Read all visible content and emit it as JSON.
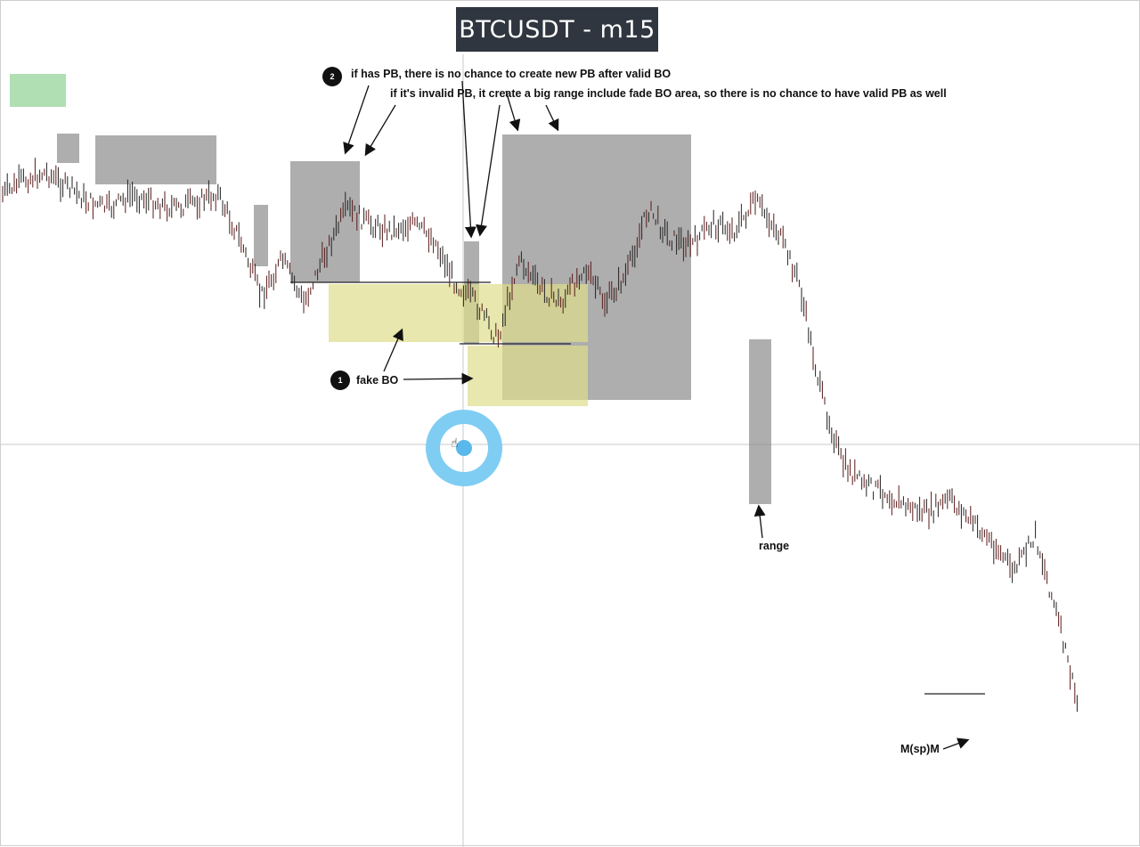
{
  "title": "BTCUSDT - m15",
  "colors": {
    "range_box": "#8f8f8f",
    "zone_box": "#dedd8a",
    "green_box": "#9bd7a0",
    "candle": "#222222",
    "crosshair": "#c8c8c8",
    "cursor_ring": "#7fcdf2"
  },
  "annotations": {
    "note1_number": "1",
    "note1_label": "fake BO",
    "note2_number": "2",
    "note2_line1": "if has PB, there is no chance to create new PB after valid BO",
    "note2_line2": "if it's invalid PB, it create a big range include fade BO area, so there is no chance to have valid PB as well",
    "range_label": "range",
    "msm_label": "M(sp)M"
  },
  "cursor": {
    "icon": "hand-pointer-icon"
  },
  "chart_data": {
    "type": "line",
    "title": "BTCUSDT - m15",
    "xlabel": "",
    "ylabel": "",
    "grid": false,
    "legend": "none",
    "ylim": [
      0,
      100
    ],
    "series": [
      {
        "name": "",
        "x": [
          0,
          2,
          4,
          6,
          8,
          10,
          12,
          14,
          16,
          18,
          20,
          22,
          24,
          26,
          28,
          30,
          32,
          34,
          36,
          38,
          40,
          42,
          44,
          46,
          48,
          50,
          52,
          54,
          56,
          58,
          60,
          62,
          64,
          66,
          68,
          70,
          72,
          74,
          76,
          78,
          80,
          82,
          84,
          86,
          88,
          90,
          92,
          94,
          96,
          98,
          100
        ],
        "values": [
          85,
          87,
          88,
          86,
          84,
          83,
          85,
          84,
          83,
          84,
          85,
          79,
          71,
          76,
          70,
          77,
          83,
          81,
          80,
          81,
          79,
          73,
          70,
          65,
          76,
          72,
          70,
          75,
          70,
          74,
          83,
          79,
          78,
          81,
          80,
          84,
          80,
          73,
          58,
          48,
          45,
          44,
          42,
          41,
          43,
          40,
          37,
          33,
          38,
          27,
          14
        ]
      }
    ]
  }
}
